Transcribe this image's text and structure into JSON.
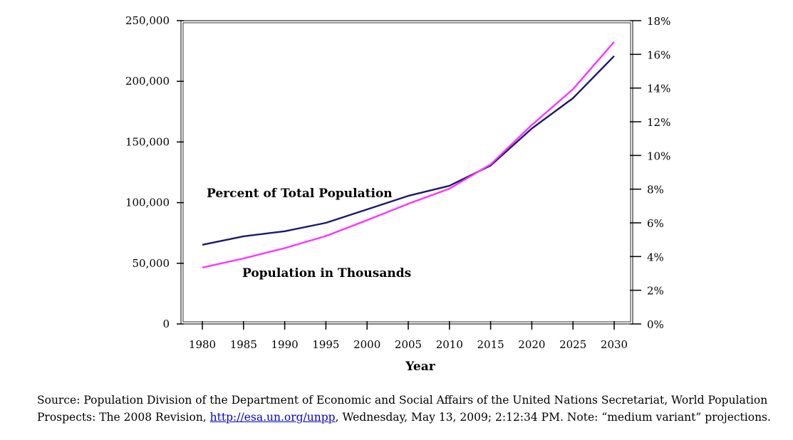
{
  "chart_data": {
    "type": "line",
    "xlabel": "Year",
    "x": [
      1980,
      1985,
      1990,
      1995,
      2000,
      2005,
      2010,
      2015,
      2020,
      2025,
      2030
    ],
    "y_left": {
      "ylim": [
        0,
        250000
      ],
      "ticks": [
        "0",
        "50,000",
        "100,000",
        "150,000",
        "200,000",
        "250,000"
      ],
      "tick_values": [
        0,
        50000,
        100000,
        150000,
        200000,
        250000
      ]
    },
    "y_right": {
      "ylim": [
        0,
        18
      ],
      "ticks": [
        "0%",
        "2%",
        "4%",
        "6%",
        "8%",
        "10%",
        "12%",
        "14%",
        "16%",
        "18%"
      ],
      "tick_values": [
        0,
        2,
        4,
        6,
        8,
        10,
        12,
        14,
        16,
        18
      ]
    },
    "series": [
      {
        "name": "Percent of Total Population",
        "axis": "right",
        "color": "#1a1a6e",
        "values": [
          4.7,
          5.2,
          5.5,
          6.0,
          6.8,
          7.6,
          8.2,
          9.4,
          11.6,
          13.4,
          15.9
        ]
      },
      {
        "name": "Population in Thousands",
        "axis": "left",
        "color": "#ff33ff",
        "values": [
          46500,
          54000,
          62500,
          72500,
          85500,
          99000,
          111500,
          131500,
          164000,
          193500,
          232500
        ]
      }
    ],
    "grid": false
  },
  "source": {
    "prefix": "Source: Population Division of the Department of Economic and Social Affairs of the United Nations Secretariat, World Population Prospects: The 2008 Revision, ",
    "link_text": "http://esa.un.org/unpp",
    "suffix": ", Wednesday, May 13, 2009; 2:12:34 PM. Note: “medium variant” projections."
  }
}
